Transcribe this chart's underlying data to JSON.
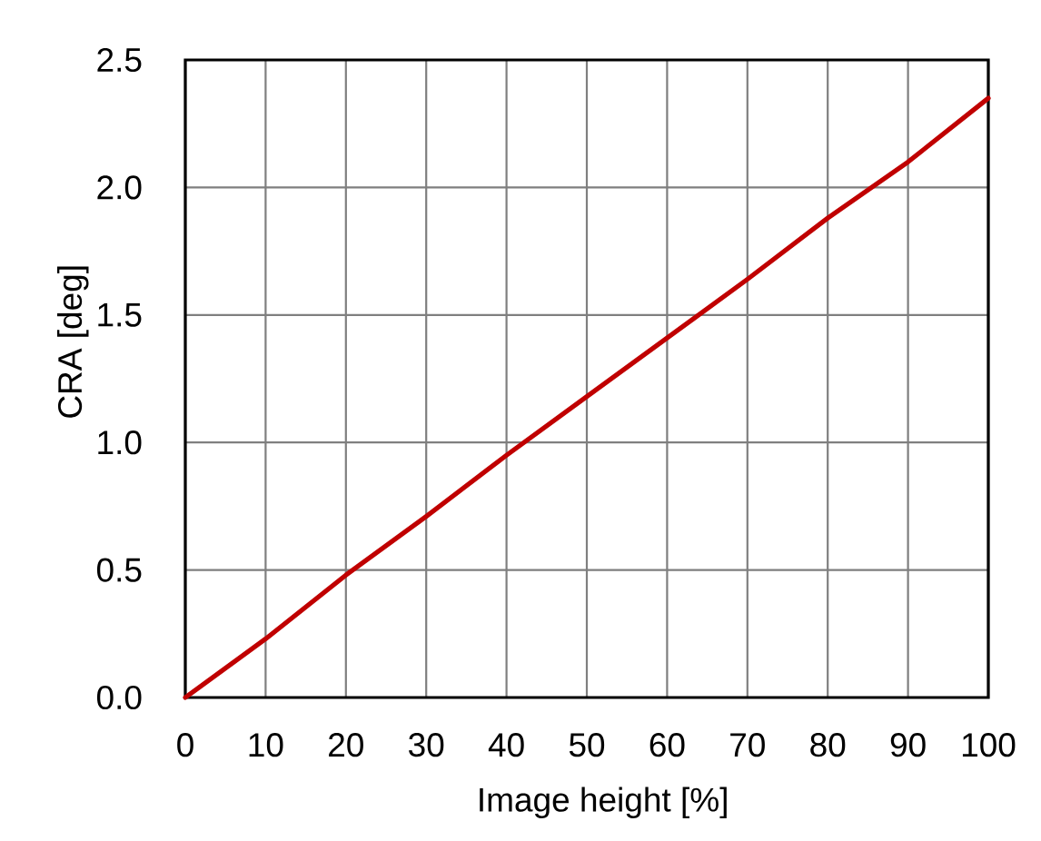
{
  "chart_data": {
    "type": "line",
    "xlabel": "Image height [%]",
    "ylabel": "CRA [deg]",
    "x": [
      0,
      10,
      20,
      30,
      40,
      50,
      60,
      70,
      80,
      90,
      100
    ],
    "series": [
      {
        "color": "#c00000",
        "values": [
          0,
          0.23,
          0.48,
          0.71,
          0.95,
          1.18,
          1.41,
          1.64,
          1.88,
          2.1,
          2.35
        ]
      }
    ],
    "xlim": [
      0,
      100
    ],
    "ylim": [
      0,
      2.5
    ],
    "xticks": [
      0,
      10,
      20,
      30,
      40,
      50,
      60,
      70,
      80,
      90,
      100
    ],
    "yticks": [
      {
        "value": 0,
        "label": "0.0"
      },
      {
        "value": 0.5,
        "label": "0.5"
      },
      {
        "value": 1,
        "label": "1.0"
      },
      {
        "value": 1.5,
        "label": "1.5"
      },
      {
        "value": 2,
        "label": "2.0"
      },
      {
        "value": 2.5,
        "label": "2.5"
      }
    ],
    "grid": true,
    "marker": "none",
    "line_style": "solid"
  }
}
